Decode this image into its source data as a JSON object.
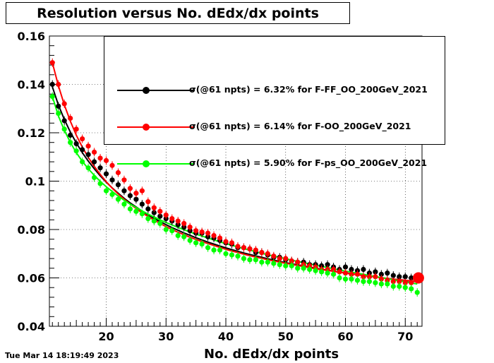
{
  "title": "Resolution versus No. dEdx/dx points",
  "timestamp": "Tue Mar 14 18:19:49 2023",
  "chart_data": {
    "type": "scatter",
    "xlabel": "No. dEdx/dx points",
    "ylabel": "",
    "xlim": [
      10.5,
      72.8
    ],
    "ylim": [
      0.04,
      0.16
    ],
    "xticks": [
      "20",
      "30",
      "40",
      "50",
      "60",
      "70"
    ],
    "yticks": [
      "0.04",
      "0.06",
      "0.08",
      "0.1",
      "0.12",
      "0.14",
      "0.16"
    ],
    "grid": true,
    "legend_position": "top-right",
    "series": [
      {
        "name": "σ(@61 npts) =  6.32% for F-FF_OO_200GeV_2021",
        "color": "#000000",
        "x": [
          11,
          12,
          13,
          14,
          15,
          16,
          17,
          18,
          19,
          20,
          21,
          22,
          23,
          24,
          25,
          26,
          27,
          28,
          29,
          30,
          31,
          32,
          33,
          34,
          35,
          36,
          37,
          38,
          39,
          40,
          41,
          42,
          43,
          44,
          45,
          46,
          47,
          48,
          49,
          50,
          51,
          52,
          53,
          54,
          55,
          56,
          57,
          58,
          59,
          60,
          61,
          62,
          63,
          64,
          65,
          66,
          67,
          68,
          69,
          70,
          71,
          72
        ],
        "values": [
          0.14,
          0.131,
          0.125,
          0.119,
          0.1155,
          0.113,
          0.111,
          0.108,
          0.1055,
          0.103,
          0.1005,
          0.0985,
          0.096,
          0.094,
          0.0925,
          0.0905,
          0.0885,
          0.087,
          0.0855,
          0.0845,
          0.0835,
          0.082,
          0.081,
          0.0795,
          0.0785,
          0.0785,
          0.077,
          0.0765,
          0.0755,
          0.0745,
          0.074,
          0.0725,
          0.0725,
          0.072,
          0.0705,
          0.0705,
          0.0695,
          0.0685,
          0.0685,
          0.0675,
          0.067,
          0.0665,
          0.0665,
          0.0655,
          0.0655,
          0.065,
          0.0655,
          0.0645,
          0.0635,
          0.0645,
          0.0635,
          0.063,
          0.0635,
          0.062,
          0.0625,
          0.0615,
          0.062,
          0.061,
          0.0605,
          0.0605,
          0.06,
          0.0595
        ],
        "fit": [
          0.139,
          0.1315,
          0.1255,
          0.1203,
          0.1158,
          0.1118,
          0.1083,
          0.1051,
          0.1022,
          0.0996,
          0.0972,
          0.095,
          0.0929,
          0.091,
          0.0893,
          0.0876,
          0.0861,
          0.0846,
          0.0833,
          0.082,
          0.0808,
          0.0797,
          0.0786,
          0.0776,
          0.0766,
          0.0757,
          0.0748,
          0.074,
          0.0732,
          0.0724,
          0.0717,
          0.071,
          0.0703,
          0.0697,
          0.0691,
          0.0685,
          0.0679,
          0.0674,
          0.0668,
          0.0663,
          0.0658,
          0.0654,
          0.0649,
          0.0645,
          0.064,
          0.0636,
          0.0632,
          0.0628,
          0.0624,
          0.0621,
          0.0617,
          0.0614,
          0.061,
          0.0607,
          0.0604,
          0.0601,
          0.0598,
          0.0595,
          0.0592,
          0.0589,
          0.0587,
          0.0584
        ]
      },
      {
        "name": "σ(@61 npts) =  6.14% for F-OO_200GeV_2021",
        "color": "#ff0000",
        "x": [
          11,
          12,
          13,
          14,
          15,
          16,
          17,
          18,
          19,
          20,
          21,
          22,
          23,
          24,
          25,
          26,
          27,
          28,
          29,
          30,
          31,
          32,
          33,
          34,
          35,
          36,
          37,
          38,
          39,
          40,
          41,
          42,
          43,
          44,
          45,
          46,
          47,
          48,
          49,
          50,
          51,
          52,
          53,
          54,
          55,
          56,
          57,
          58,
          59,
          60,
          61,
          62,
          63,
          64,
          65,
          66,
          67,
          68,
          69,
          70,
          71,
          72
        ],
        "values": [
          0.149,
          0.14,
          0.132,
          0.126,
          0.1215,
          0.1175,
          0.1145,
          0.112,
          0.1095,
          0.1085,
          0.1065,
          0.1035,
          0.1005,
          0.097,
          0.095,
          0.096,
          0.0915,
          0.089,
          0.0875,
          0.086,
          0.0845,
          0.0835,
          0.0825,
          0.081,
          0.0795,
          0.079,
          0.0785,
          0.0775,
          0.0765,
          0.075,
          0.0745,
          0.073,
          0.0725,
          0.072,
          0.0715,
          0.0705,
          0.07,
          0.069,
          0.068,
          0.068,
          0.067,
          0.0665,
          0.0655,
          0.065,
          0.0645,
          0.0635,
          0.0635,
          0.0635,
          0.0625,
          0.062,
          0.0615,
          0.0615,
          0.0605,
          0.0605,
          0.0605,
          0.0595,
          0.059,
          0.0585,
          0.0585,
          0.058,
          0.058,
          0.06
        ],
        "fit": [
          0.149,
          0.1395,
          0.1315,
          0.1248,
          0.119,
          0.1141,
          0.1098,
          0.1061,
          0.1028,
          0.0998,
          0.0971,
          0.0947,
          0.0925,
          0.0905,
          0.0887,
          0.0869,
          0.0854,
          0.0839,
          0.0825,
          0.0812,
          0.08,
          0.0789,
          0.0779,
          0.0768,
          0.0759,
          0.075,
          0.0742,
          0.0734,
          0.0726,
          0.0718,
          0.0711,
          0.0705,
          0.0698,
          0.0692,
          0.0686,
          0.0681,
          0.0675,
          0.067,
          0.0665,
          0.066,
          0.0656,
          0.0651,
          0.0647,
          0.0642,
          0.0638,
          0.0634,
          0.0631,
          0.0627,
          0.0623,
          0.062,
          0.0616,
          0.0613,
          0.061,
          0.0607,
          0.0604,
          0.0601,
          0.0598,
          0.0595,
          0.0593,
          0.059,
          0.0588,
          0.0585
        ]
      },
      {
        "name": "σ(@61 npts) =  5.90% for F-ps_OO_200GeV_2021",
        "color": "#00ff00",
        "x": [
          11,
          12,
          13,
          14,
          15,
          16,
          17,
          18,
          19,
          20,
          21,
          22,
          23,
          24,
          25,
          26,
          27,
          28,
          29,
          30,
          31,
          32,
          33,
          34,
          35,
          36,
          37,
          38,
          39,
          40,
          41,
          42,
          43,
          44,
          45,
          46,
          47,
          48,
          49,
          50,
          51,
          52,
          53,
          54,
          55,
          56,
          57,
          58,
          59,
          60,
          61,
          62,
          63,
          64,
          65,
          66,
          67,
          68,
          69,
          70,
          71,
          72
        ],
        "values": [
          0.135,
          0.128,
          0.1215,
          0.116,
          0.1125,
          0.108,
          0.1055,
          0.1015,
          0.099,
          0.096,
          0.0945,
          0.0925,
          0.0905,
          0.0885,
          0.0875,
          0.0865,
          0.0845,
          0.0835,
          0.0825,
          0.08,
          0.0795,
          0.0775,
          0.077,
          0.0755,
          0.0745,
          0.074,
          0.0725,
          0.0715,
          0.0715,
          0.07,
          0.0695,
          0.069,
          0.068,
          0.0675,
          0.0675,
          0.0665,
          0.0665,
          0.066,
          0.0655,
          0.065,
          0.065,
          0.064,
          0.064,
          0.0635,
          0.063,
          0.0625,
          0.062,
          0.0615,
          0.06,
          0.0595,
          0.0595,
          0.059,
          0.0585,
          0.0585,
          0.058,
          0.0575,
          0.0575,
          0.0565,
          0.0565,
          0.056,
          0.0555,
          0.054
        ],
        "fit": [
          0.135,
          0.127,
          0.121,
          0.116,
          0.1118,
          0.1082,
          0.1051,
          0.1024,
          0.0999,
          0.0977,
          0.0957,
          0.0938,
          0.0921,
          0.0905,
          0.0891,
          0.0877,
          0.0864,
          0.0852,
          0.084,
          0.0829,
          0.0819,
          0.0809,
          0.0799,
          0.079,
          0.0781,
          0.0773,
          0.0765,
          0.0757,
          0.0749,
          0.0742,
          0.0735,
          0.0728,
          0.0721,
          0.0715,
          0.0708,
          0.0702,
          0.0696,
          0.069,
          0.0685,
          0.0679,
          0.0674,
          0.0668,
          0.0663,
          0.0658,
          0.0653,
          0.0648,
          0.0643,
          0.0638,
          0.0633,
          0.0628,
          0.0624,
          0.0619,
          0.0615,
          0.061,
          0.0606,
          0.0601,
          0.0597,
          0.0592,
          0.0588,
          0.0584,
          0.0579,
          0.0575
        ]
      }
    ],
    "highlight": {
      "x": 72.2,
      "y": 0.06,
      "color": "#ff0000"
    }
  }
}
